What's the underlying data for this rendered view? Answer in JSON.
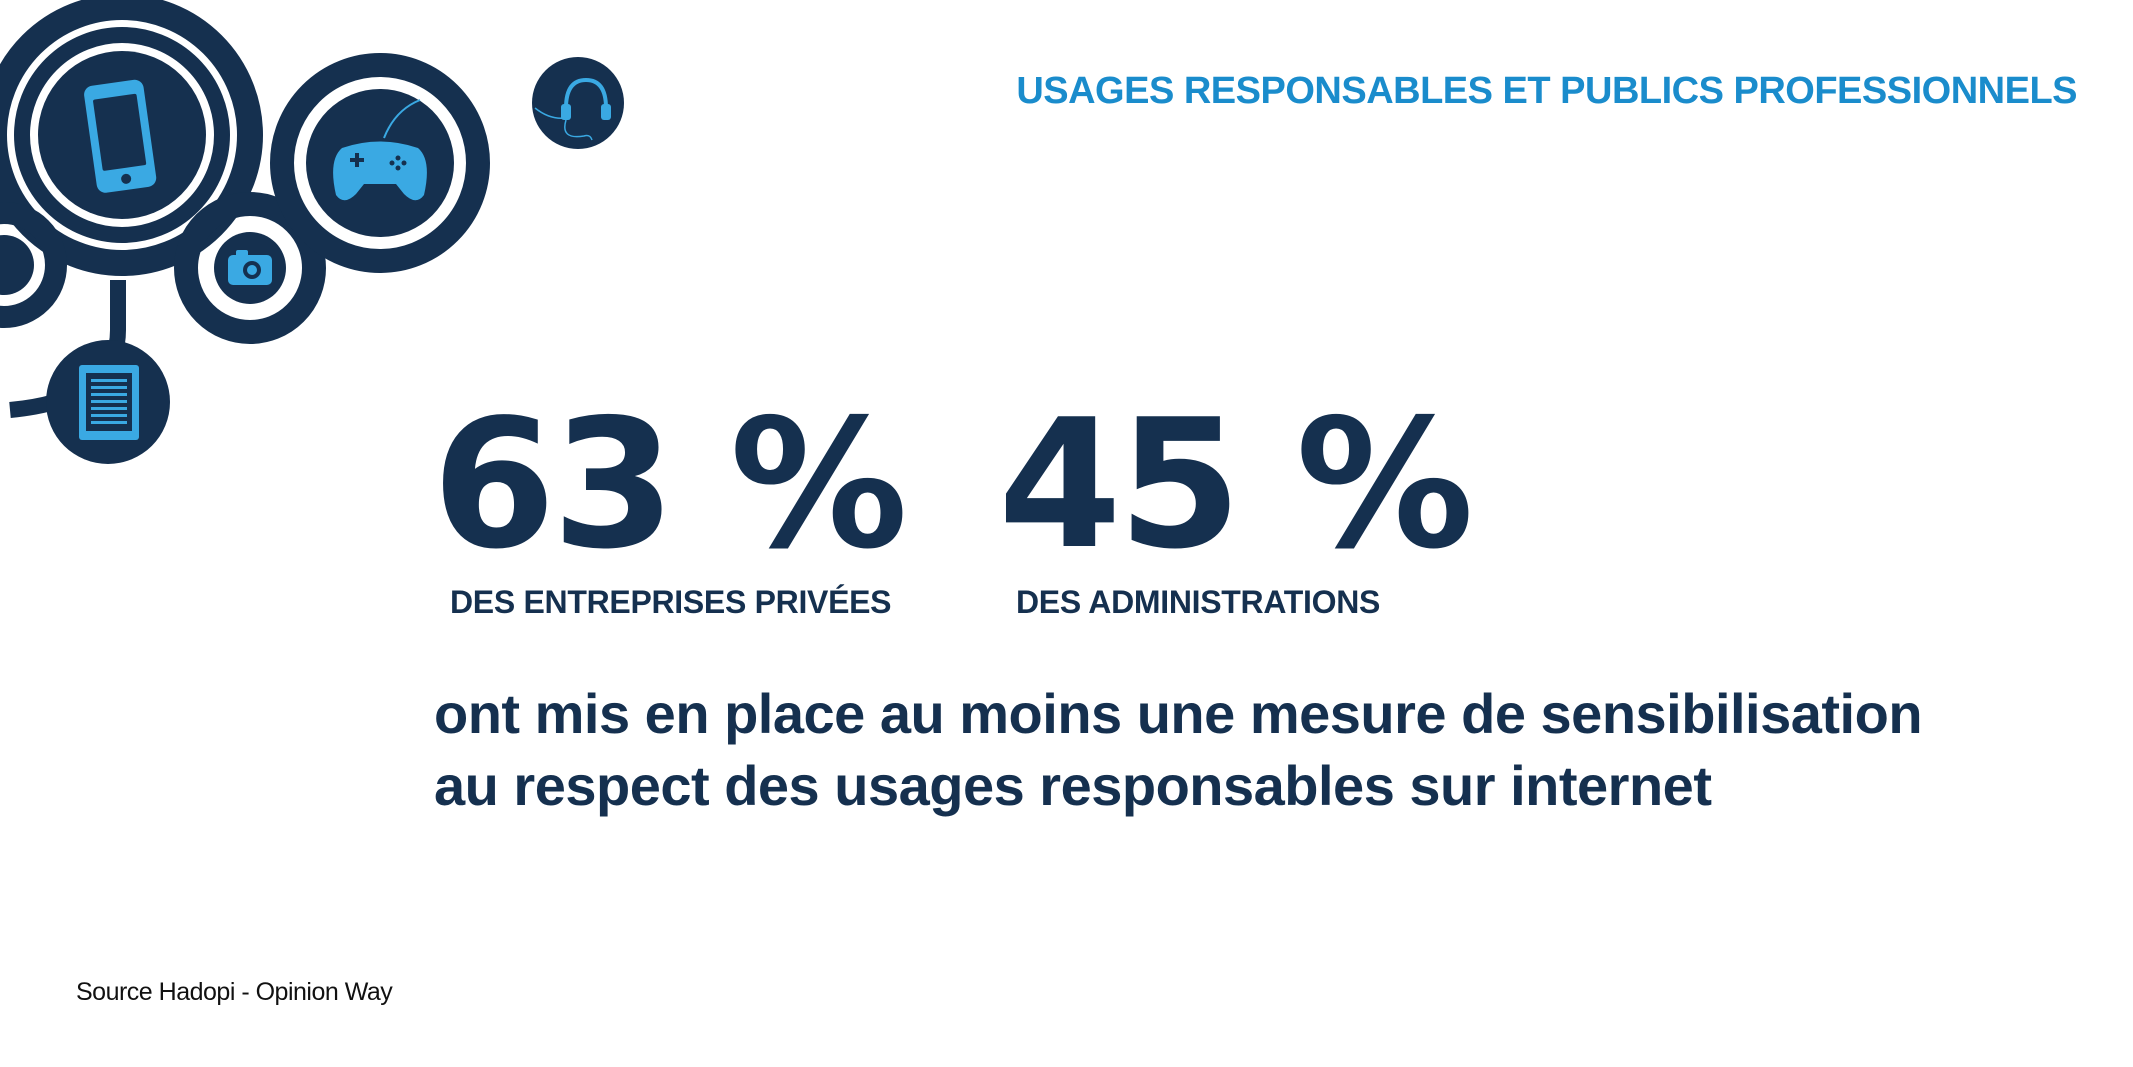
{
  "header": {
    "title": "USAGES RESPONSABLES ET PUBLICS PROFESSIONNELS"
  },
  "stats": [
    {
      "value": "63 %",
      "label": "DES ENTREPRISES PRIVÉES"
    },
    {
      "value": "45 %",
      "label": "DES ADMINISTRATIONS"
    }
  ],
  "statement": {
    "line1": "ont mis en place au moins une mesure de sensibilisation",
    "line2": "au respect des usages responsables sur internet"
  },
  "footer": {
    "source": "Source Hadopi - Opinion Way"
  },
  "decoration": {
    "icons": [
      "smartphone-icon",
      "gamepad-icon",
      "headphones-icon",
      "camera-icon",
      "ebook-reader-icon"
    ]
  },
  "colors": {
    "navy": "#15304f",
    "accent_blue": "#1a8ccc",
    "icon_blue": "#3aa9e3",
    "background": "#ffffff"
  }
}
